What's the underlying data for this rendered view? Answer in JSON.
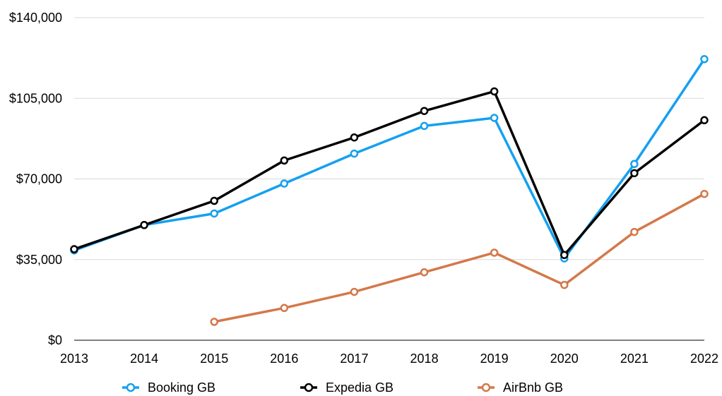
{
  "chart_data": {
    "type": "line",
    "title": "",
    "xlabel": "",
    "ylabel": "",
    "x": [
      "2013",
      "2014",
      "2015",
      "2016",
      "2017",
      "2018",
      "2019",
      "2020",
      "2021",
      "2022"
    ],
    "ylim": [
      0,
      140000
    ],
    "yticks": [
      0,
      35000,
      70000,
      105000,
      140000
    ],
    "ytick_labels": [
      "$0",
      "$35,000",
      "$70,000",
      "$105,000",
      "$140,000"
    ],
    "grid": true,
    "legend": "bottom",
    "series": [
      {
        "name": "Booking GB",
        "color": "#14a0f0",
        "values": [
          39000,
          50000,
          55000,
          68000,
          81000,
          93000,
          96500,
          35500,
          76500,
          122000
        ]
      },
      {
        "name": "Expedia GB",
        "color": "#000000",
        "values": [
          39500,
          50000,
          60500,
          78000,
          88000,
          99500,
          108000,
          37000,
          72500,
          95500
        ]
      },
      {
        "name": "AirBnb GB",
        "color": "#d4784a",
        "values": [
          null,
          null,
          8000,
          14000,
          21000,
          29500,
          38000,
          24000,
          47000,
          63500
        ]
      }
    ]
  }
}
